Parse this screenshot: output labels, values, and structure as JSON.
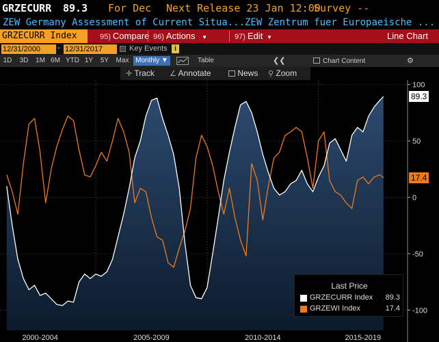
{
  "header": {
    "ticker": "GRZECURR",
    "price": "89.3",
    "period_label": "For Dec",
    "next_release": "Next Release 23 Jan 12:00",
    "survey": "Survey --",
    "description": "ZEW Germany Assessment of Current Situa...ZEW Zentrum fuer Europaeische ..."
  },
  "menu": {
    "security": "GRZECURR Index",
    "items": [
      {
        "num": "95)",
        "label": "Compare"
      },
      {
        "num": "96)",
        "label": "Actions",
        "dropdown": true
      },
      {
        "num": "97)",
        "label": "Edit",
        "dropdown": true
      }
    ],
    "view_title": "Line Chart"
  },
  "range": {
    "start": "12/31/2000",
    "end": "12/31/2017",
    "key_events": "Key Events",
    "info_icon": "i"
  },
  "periods": {
    "buttons": [
      "1D",
      "3D",
      "1M",
      "6M",
      "YTD",
      "1Y",
      "5Y",
      "Max"
    ],
    "frequency": "Monthly ▼",
    "table": "Table",
    "collapse": "❮❮",
    "chart_content": "Chart Content",
    "settings_icon": "gear-icon"
  },
  "tools": {
    "track": "Track",
    "annotate": "Annotate",
    "news": "News",
    "zoom": "Zoom"
  },
  "legend": {
    "header": "Last Price",
    "entries": [
      {
        "name": "GRZECURR Index",
        "value": "89.3",
        "color": "#ffffff"
      },
      {
        "name": "GRZEWI Index",
        "value": "17.4",
        "color": "#f07a1a"
      }
    ]
  },
  "chart_data": {
    "type": "line",
    "x_labels": [
      "2000-2004",
      "2005-2009",
      "2010-2014",
      "2015-2019"
    ],
    "y_ticks": [
      "100",
      "50",
      "0",
      "-50",
      "-100"
    ],
    "ylim": [
      -118,
      104
    ],
    "xlim": [
      2000.7,
      2019.0
    ],
    "last_labels": {
      "GRZECURR": "89.3",
      "GRZEWI": "17.4"
    },
    "series": [
      {
        "name": "GRZECURR Index",
        "color": "#ffffff",
        "x": [
          2001.0,
          2001.25,
          2001.5,
          2001.75,
          2002.0,
          2002.25,
          2002.5,
          2002.75,
          2003.0,
          2003.25,
          2003.5,
          2003.75,
          2004.0,
          2004.25,
          2004.5,
          2004.75,
          2005.0,
          2005.25,
          2005.5,
          2005.75,
          2006.0,
          2006.25,
          2006.5,
          2006.75,
          2007.0,
          2007.25,
          2007.5,
          2007.75,
          2008.0,
          2008.25,
          2008.5,
          2008.75,
          2009.0,
          2009.25,
          2009.5,
          2009.75,
          2010.0,
          2010.25,
          2010.5,
          2010.75,
          2011.0,
          2011.25,
          2011.5,
          2011.75,
          2012.0,
          2012.25,
          2012.5,
          2012.75,
          2013.0,
          2013.25,
          2013.5,
          2013.75,
          2014.0,
          2014.25,
          2014.5,
          2014.75,
          2015.0,
          2015.25,
          2015.5,
          2015.75,
          2016.0,
          2016.25,
          2016.5,
          2016.75,
          2017.0,
          2017.25,
          2017.5,
          2017.75,
          2017.92
        ],
        "y": [
          10,
          -25,
          -55,
          -72,
          -82,
          -78,
          -87,
          -85,
          -90,
          -95,
          -96,
          -92,
          -93,
          -75,
          -68,
          -72,
          -68,
          -70,
          -66,
          -55,
          -35,
          -15,
          8,
          35,
          50,
          72,
          86,
          88,
          70,
          55,
          38,
          8,
          -40,
          -78,
          -89,
          -90,
          -80,
          -50,
          -18,
          15,
          40,
          62,
          82,
          85,
          75,
          58,
          38,
          22,
          8,
          2,
          5,
          12,
          15,
          24,
          12,
          5,
          18,
          28,
          48,
          52,
          42,
          32,
          55,
          62,
          58,
          72,
          80,
          86,
          89.3
        ]
      },
      {
        "name": "GRZEWI Index",
        "color": "#f07a1a",
        "x": [
          2001.0,
          2001.25,
          2001.5,
          2001.75,
          2002.0,
          2002.25,
          2002.5,
          2002.75,
          2003.0,
          2003.25,
          2003.5,
          2003.75,
          2004.0,
          2004.25,
          2004.5,
          2004.75,
          2005.0,
          2005.25,
          2005.5,
          2005.75,
          2006.0,
          2006.25,
          2006.5,
          2006.75,
          2007.0,
          2007.25,
          2007.5,
          2007.75,
          2008.0,
          2008.25,
          2008.5,
          2008.75,
          2009.0,
          2009.25,
          2009.5,
          2009.75,
          2010.0,
          2010.25,
          2010.5,
          2010.75,
          2011.0,
          2011.25,
          2011.5,
          2011.75,
          2012.0,
          2012.25,
          2012.5,
          2012.75,
          2013.0,
          2013.25,
          2013.5,
          2013.75,
          2014.0,
          2014.25,
          2014.5,
          2014.75,
          2015.0,
          2015.25,
          2015.5,
          2015.75,
          2016.0,
          2016.25,
          2016.5,
          2016.75,
          2017.0,
          2017.25,
          2017.5,
          2017.75,
          2017.92
        ],
        "y": [
          20,
          5,
          -15,
          30,
          65,
          70,
          40,
          -5,
          25,
          45,
          60,
          72,
          68,
          42,
          20,
          18,
          28,
          40,
          32,
          50,
          70,
          58,
          40,
          -5,
          8,
          5,
          -18,
          -35,
          -38,
          -58,
          -62,
          -45,
          -30,
          -10,
          35,
          55,
          45,
          28,
          5,
          -15,
          8,
          -18,
          -38,
          -52,
          30,
          15,
          -20,
          10,
          35,
          40,
          55,
          58,
          62,
          58,
          35,
          8,
          50,
          58,
          15,
          5,
          2,
          -5,
          -10,
          15,
          18,
          12,
          18,
          20,
          17.4
        ]
      }
    ]
  }
}
